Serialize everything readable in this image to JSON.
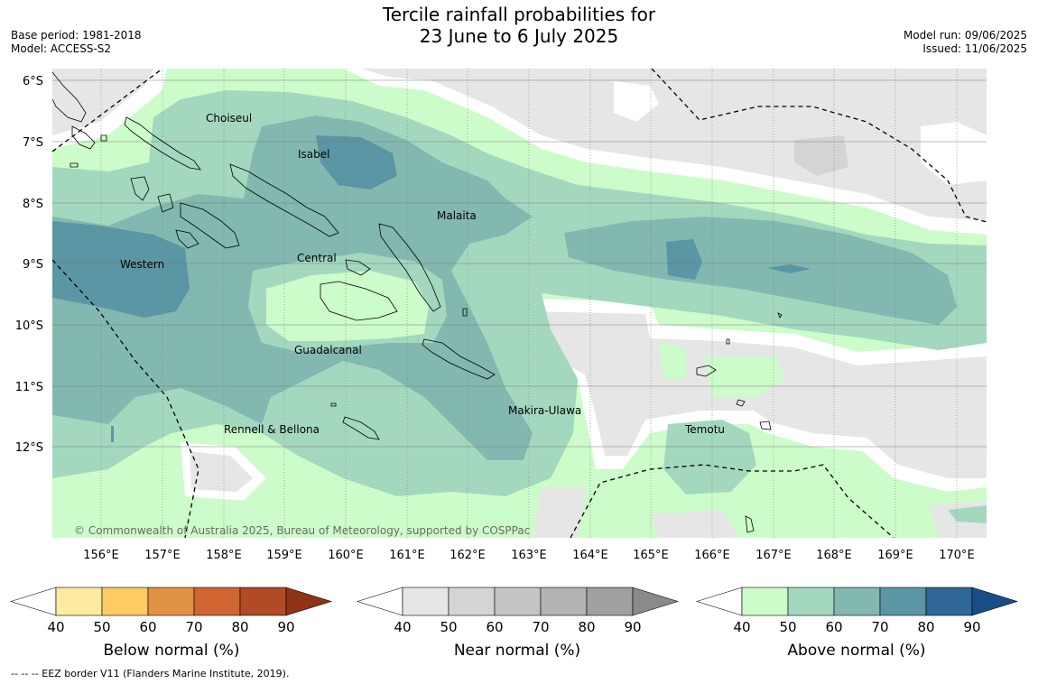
{
  "header": {
    "title_line1": "Tercile rainfall probabilities for",
    "title_line2": "23 June to 6 July 2025",
    "base_period": "Base period: 1981-2018",
    "model": "Model: ACCESS-S2",
    "model_run": "Model run: 09/06/2025",
    "issued": "Issued: 11/06/2025"
  },
  "map": {
    "lat_labels": [
      "6°S",
      "7°S",
      "8°S",
      "9°S",
      "10°S",
      "11°S",
      "12°S"
    ],
    "lon_labels": [
      "156°E",
      "157°E",
      "158°E",
      "159°E",
      "160°E",
      "161°E",
      "162°E",
      "163°E",
      "164°E",
      "165°E",
      "166°E",
      "167°E",
      "168°E",
      "169°E",
      "170°E"
    ],
    "provinces": {
      "choiseul": "Choiseul",
      "isabel": "Isabel",
      "malaita": "Malaita",
      "western": "Western",
      "central": "Central",
      "guadalcanal": "Guadalcanal",
      "makira": "Makira-Ulawa",
      "rennell": "Rennell & Bellona",
      "temotu": "Temotu"
    },
    "copyright": "© Commonwealth of Australia 2025, Bureau of Meteorology, supported by COSPPac"
  },
  "colorbars": {
    "ticks": [
      "40",
      "50",
      "60",
      "70",
      "80",
      "90"
    ],
    "below": {
      "label": "Below normal (%)",
      "colors": [
        "#fdeba0",
        "#fdca63",
        "#e19143",
        "#d06532",
        "#b04b26",
        "#8e3318"
      ]
    },
    "near": {
      "label": "Near normal (%)",
      "colors": [
        "#e6e6e6",
        "#d4d4d4",
        "#c4c4c4",
        "#b3b3b3",
        "#a0a0a0",
        "#8a8a8a"
      ]
    },
    "above": {
      "label": "Above normal (%)",
      "colors": [
        "#ccfcc9",
        "#a3d8bf",
        "#82b8b0",
        "#5a96a4",
        "#2f6797",
        "#184d86"
      ]
    }
  },
  "footer": {
    "eez_note": "--  --  -- EEZ border V11 (Flanders Marine Institute, 2019)."
  }
}
